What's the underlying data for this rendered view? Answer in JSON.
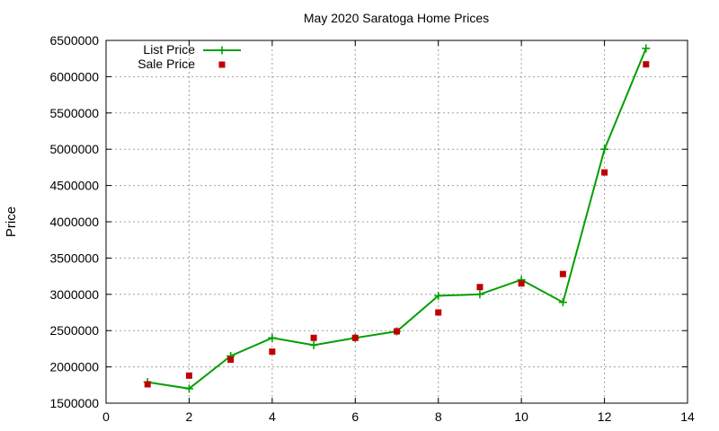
{
  "chart_data": {
    "type": "line",
    "title": "May 2020 Saratoga Home Prices",
    "xlabel": "",
    "ylabel": "Price",
    "xlim": [
      0,
      14
    ],
    "ylim": [
      1500000,
      6500000
    ],
    "xticks": [
      0,
      2,
      4,
      6,
      8,
      10,
      12,
      14
    ],
    "yticks": [
      1500000,
      2000000,
      2500000,
      3000000,
      3500000,
      4000000,
      4500000,
      5000000,
      5500000,
      6000000,
      6500000
    ],
    "grid": true,
    "legend_position": "top-left",
    "series": [
      {
        "name": "List Price",
        "style": "line+cross",
        "color": "#00a000",
        "x": [
          1,
          2,
          3,
          4,
          5,
          6,
          7,
          8,
          9,
          10,
          11,
          12,
          13
        ],
        "y": [
          1790000,
          1700000,
          2150000,
          2400000,
          2300000,
          2400000,
          2490000,
          2980000,
          3000000,
          3200000,
          2890000,
          5000000,
          6390000
        ]
      },
      {
        "name": "Sale Price",
        "style": "square-points",
        "color": "#c00000",
        "x": [
          1,
          2,
          3,
          4,
          5,
          6,
          7,
          8,
          9,
          10,
          11,
          12,
          13
        ],
        "y": [
          1760000,
          1880000,
          2100000,
          2210000,
          2400000,
          2400000,
          2490000,
          2750000,
          3100000,
          3150000,
          3280000,
          4680000,
          6170000
        ]
      }
    ]
  }
}
